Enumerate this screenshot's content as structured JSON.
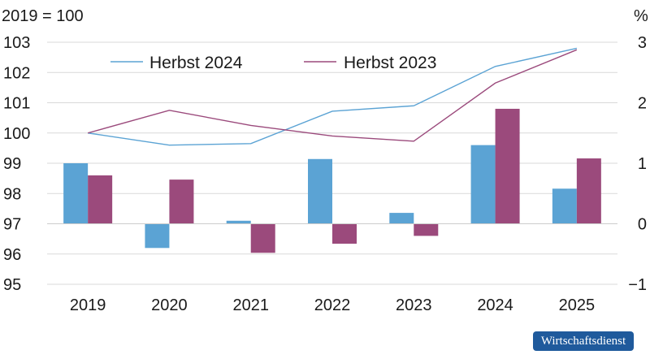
{
  "chart_data": {
    "type": "bar+line",
    "left_axis_label": "2019 = 100",
    "right_axis_label": "%",
    "categories": [
      "2019",
      "2020",
      "2021",
      "2022",
      "2023",
      "2024",
      "2025"
    ],
    "left_axis": {
      "ylim": [
        95,
        103
      ],
      "ticks": [
        95,
        96,
        97,
        98,
        99,
        100,
        101,
        102,
        103
      ]
    },
    "right_axis": {
      "ylim": [
        -1,
        3
      ],
      "ticks": [
        -1,
        0,
        1,
        2,
        3
      ]
    },
    "bar_series": [
      {
        "name": "Herbst 2024",
        "axis": "right",
        "color": "#5ba3d4",
        "values": [
          1.0,
          -0.4,
          0.05,
          1.07,
          0.18,
          1.3,
          0.58
        ]
      },
      {
        "name": "Herbst 2023",
        "axis": "right",
        "color": "#9b4a7c",
        "values": [
          0.8,
          0.73,
          -0.48,
          -0.33,
          -0.2,
          1.9,
          1.08
        ]
      }
    ],
    "line_series": [
      {
        "name": "Herbst 2024",
        "axis": "left",
        "color": "#5ba3d4",
        "values": [
          100.0,
          99.6,
          99.65,
          100.72,
          100.9,
          102.2,
          102.8
        ]
      },
      {
        "name": "Herbst 2023",
        "axis": "left",
        "color": "#9b4a7c",
        "values": [
          100.0,
          100.75,
          100.25,
          99.9,
          99.73,
          101.65,
          102.75
        ]
      }
    ],
    "legend": {
      "placement": "top-center",
      "entries": [
        "Herbst 2024",
        "Herbst 2023"
      ]
    }
  },
  "source": {
    "label": "Wirtschaftsdienst"
  }
}
